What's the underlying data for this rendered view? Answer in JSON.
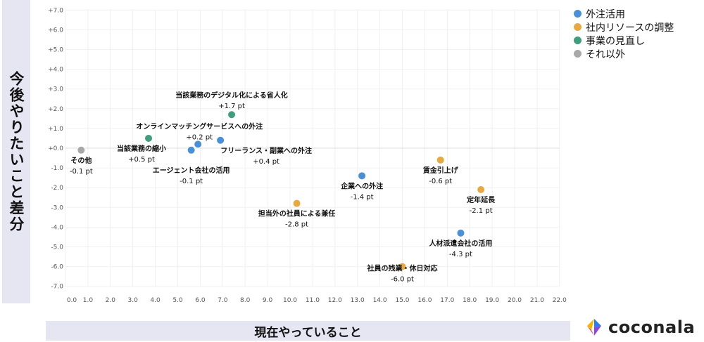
{
  "chart_data": {
    "type": "scatter",
    "xlabel": "現在やっていること",
    "ylabel": "今後やりたいこと差分",
    "xlim": [
      0,
      22
    ],
    "ylim": [
      -7,
      7
    ],
    "x_ticks": [
      "0.0",
      "1.0",
      "2.0",
      "3.0",
      "4.0",
      "5.0",
      "6.0",
      "7.0",
      "8.0",
      "9.0",
      "10.0",
      "11.0",
      "12.0",
      "13.0",
      "14.0",
      "15.0",
      "16.0",
      "17.0",
      "18.0",
      "19.0",
      "20.0",
      "21.0",
      "22.0"
    ],
    "y_ticks": [
      "+7.0",
      "+6.0",
      "+5.0",
      "+4.0",
      "+3.0",
      "+2.0",
      "+1.0",
      "+0.0",
      "-1.0",
      "-2.0",
      "-3.0",
      "-4.0",
      "-5.0",
      "-6.0",
      "-7.0"
    ],
    "grid": true,
    "legend_position": "top-right",
    "categories": [
      {
        "name": "外注活用",
        "color": "#4a90d9"
      },
      {
        "name": "社内リソースの調整",
        "color": "#e8a93e"
      },
      {
        "name": "事業の見直し",
        "color": "#3e9e7e"
      },
      {
        "name": "それ以外",
        "color": "#a8a8a8"
      }
    ],
    "points": [
      {
        "label": "その他",
        "value_label": "-0.1 pt",
        "x": 0.7,
        "y": -0.1,
        "category": 3
      },
      {
        "label": "当該業務の縮小",
        "value_label": "+0.5 pt",
        "x": 3.7,
        "y": 0.5,
        "category": 2
      },
      {
        "label": "エージェント会社の活用",
        "value_label": "-0.1 pt",
        "x": 5.6,
        "y": -0.1,
        "category": 0
      },
      {
        "label": "オンラインマッチングサービスへの外注",
        "value_label": "+0.2 pt",
        "x": 5.9,
        "y": 0.2,
        "category": 0
      },
      {
        "label": "フリーランス・副業への外注",
        "value_label": "+0.4 pt",
        "x": 6.9,
        "y": 0.4,
        "category": 0
      },
      {
        "label": "当該業務のデジタル化による省人化",
        "value_label": "+1.7 pt",
        "x": 7.4,
        "y": 1.7,
        "category": 2
      },
      {
        "label": "担当外の社員による兼任",
        "value_label": "-2.8 pt",
        "x": 10.3,
        "y": -2.8,
        "category": 1
      },
      {
        "label": "企業への外注",
        "value_label": "-1.4 pt",
        "x": 13.2,
        "y": -1.4,
        "category": 0
      },
      {
        "label": "賃金引上げ",
        "value_label": "-0.6 pt",
        "x": 16.7,
        "y": -0.6,
        "category": 1
      },
      {
        "label": "定年延長",
        "value_label": "-2.1 pt",
        "x": 18.5,
        "y": -2.1,
        "category": 1
      },
      {
        "label": "人材派遣会社の活用",
        "value_label": "-4.3 pt",
        "x": 17.6,
        "y": -4.3,
        "category": 0
      },
      {
        "label": "社員の残業・休日対応",
        "value_label": "-6.0 pt",
        "x": 15.0,
        "y": -6.0,
        "category": 1
      }
    ]
  },
  "brand": {
    "name": "coconala"
  }
}
